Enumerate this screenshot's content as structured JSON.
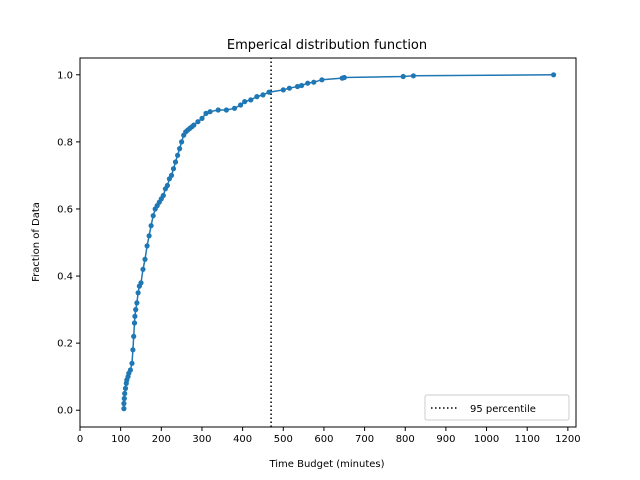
{
  "chart_data": {
    "type": "line",
    "title": "Emperical distribution function",
    "xlabel": "Time Budget (minutes)",
    "ylabel": "Fraction of Data",
    "xlim": [
      0,
      1220
    ],
    "ylim": [
      -0.05,
      1.05
    ],
    "xticks": [
      0,
      100,
      200,
      300,
      400,
      500,
      600,
      700,
      800,
      900,
      1000,
      1100,
      1200
    ],
    "yticks": [
      0.0,
      0.2,
      0.4,
      0.6,
      0.8,
      1.0
    ],
    "xtick_labels": [
      "0",
      "100",
      "200",
      "300",
      "400",
      "500",
      "600",
      "700",
      "800",
      "900",
      "1000",
      "1100",
      "1200"
    ],
    "ytick_labels": [
      "0.0",
      "0.2",
      "0.4",
      "0.6",
      "0.8",
      "1.0"
    ],
    "grid": false,
    "legend_position": "lower-right",
    "series": [
      {
        "color": "#1f77b4",
        "marker": "circle",
        "x": [
          108,
          108,
          109,
          110,
          112,
          114,
          115,
          118,
          120,
          124,
          128,
          130,
          132,
          134,
          135,
          137,
          140,
          143,
          146,
          150,
          155,
          160,
          165,
          170,
          175,
          180,
          185,
          190,
          195,
          200,
          205,
          210,
          215,
          220,
          225,
          230,
          235,
          240,
          245,
          250,
          255,
          260,
          265,
          270,
          275,
          280,
          290,
          300,
          310,
          320,
          340,
          360,
          380,
          395,
          405,
          420,
          435,
          450,
          465,
          500,
          515,
          535,
          545,
          560,
          575,
          595,
          645,
          650,
          795,
          820,
          1165
        ],
        "y": [
          0.005,
          0.02,
          0.035,
          0.05,
          0.065,
          0.08,
          0.09,
          0.1,
          0.11,
          0.12,
          0.14,
          0.18,
          0.22,
          0.26,
          0.28,
          0.3,
          0.32,
          0.35,
          0.37,
          0.38,
          0.42,
          0.45,
          0.49,
          0.52,
          0.55,
          0.58,
          0.6,
          0.61,
          0.62,
          0.63,
          0.64,
          0.66,
          0.67,
          0.69,
          0.7,
          0.72,
          0.74,
          0.76,
          0.78,
          0.8,
          0.82,
          0.83,
          0.835,
          0.84,
          0.845,
          0.85,
          0.86,
          0.87,
          0.885,
          0.89,
          0.895,
          0.895,
          0.9,
          0.91,
          0.92,
          0.925,
          0.935,
          0.94,
          0.948,
          0.955,
          0.96,
          0.965,
          0.968,
          0.975,
          0.978,
          0.985,
          0.99,
          0.992,
          0.995,
          0.997,
          1.0
        ]
      },
      {
        "name": "95 percentile",
        "color": "#000000",
        "style": "dotted",
        "x": [
          470,
          470
        ],
        "y": [
          -0.05,
          1.05
        ]
      }
    ]
  }
}
